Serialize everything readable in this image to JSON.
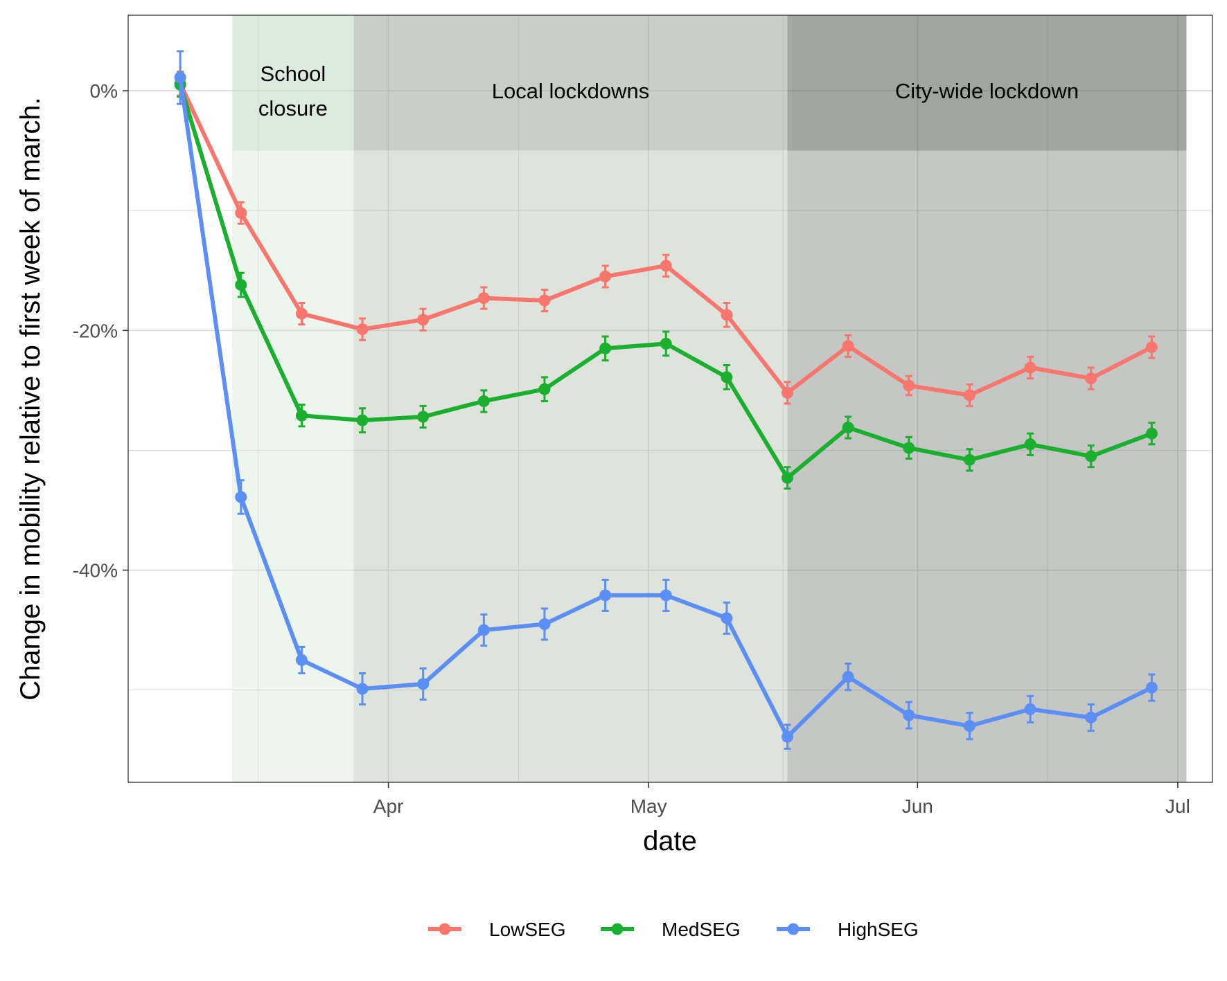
{
  "chart_data": {
    "type": "line",
    "xlabel": "date",
    "ylabel": "Change in mobility relative to first week of march.",
    "x_axis_type": "date",
    "xlim": [
      "2020-03-02",
      "2020-07-05"
    ],
    "ylim": [
      -57.7,
      6.3
    ],
    "x_ticks": [
      {
        "date": "2020-04-01",
        "label": "Apr"
      },
      {
        "date": "2020-05-01",
        "label": "May"
      },
      {
        "date": "2020-06-01",
        "label": "Jun"
      },
      {
        "date": "2020-07-01",
        "label": "Jul"
      }
    ],
    "y_ticks": [
      {
        "value": 0,
        "label": "0%"
      },
      {
        "value": -20,
        "label": "-20%"
      },
      {
        "value": -40,
        "label": "-40%"
      }
    ],
    "grid": true,
    "legend_position": "bottom",
    "periods": [
      {
        "label_lines": [
          "School",
          "closure"
        ],
        "start": "2020-03-14",
        "end": "2020-03-28",
        "fill": "#d4ead4",
        "header_fill": "#c4dfc4"
      },
      {
        "label_lines": [
          "Local lockdowns"
        ],
        "start": "2020-03-28",
        "end": "2020-05-17",
        "fill": "#b5c2b2",
        "header_fill": "#a3b0a0"
      },
      {
        "label_lines": [
          "City-wide lockdown"
        ],
        "start": "2020-05-17",
        "end": "2020-07-02",
        "fill": "#7d837a",
        "header_fill": "#636b61"
      }
    ],
    "x": [
      "2020-03-08",
      "2020-03-15",
      "2020-03-22",
      "2020-03-29",
      "2020-04-05",
      "2020-04-12",
      "2020-04-19",
      "2020-04-26",
      "2020-05-03",
      "2020-05-10",
      "2020-05-17",
      "2020-05-24",
      "2020-05-31",
      "2020-06-07",
      "2020-06-14",
      "2020-06-21",
      "2020-06-28"
    ],
    "series": [
      {
        "name": "LowSEG",
        "color": "#f8766d",
        "values": [
          0.6,
          -10.2,
          -18.6,
          -19.9,
          -19.1,
          -17.3,
          -17.5,
          -15.5,
          -14.6,
          -18.7,
          -25.2,
          -21.3,
          -24.6,
          -25.4,
          -23.1,
          -24.0,
          -21.4
        ],
        "error": [
          1.0,
          0.9,
          0.9,
          0.9,
          0.9,
          0.9,
          0.9,
          0.9,
          0.9,
          1.0,
          0.9,
          0.9,
          0.8,
          0.9,
          0.9,
          0.9,
          0.9
        ]
      },
      {
        "name": "MedSEG",
        "color": "#1aaf2e",
        "values": [
          0.5,
          -16.2,
          -27.1,
          -27.5,
          -27.2,
          -25.9,
          -24.9,
          -21.5,
          -21.1,
          -23.9,
          -32.3,
          -28.1,
          -29.8,
          -30.8,
          -29.5,
          -30.5,
          -28.6
        ],
        "error": [
          1.0,
          1.0,
          0.9,
          1.0,
          0.9,
          0.9,
          1.0,
          1.0,
          1.0,
          1.0,
          0.9,
          0.9,
          0.9,
          0.9,
          0.9,
          0.9,
          0.9
        ]
      },
      {
        "name": "HighSEG",
        "color": "#5b8ff5",
        "values": [
          1.1,
          -33.9,
          -47.5,
          -49.9,
          -49.5,
          -45.0,
          -44.5,
          -42.1,
          -42.1,
          -44.0,
          -53.9,
          -48.9,
          -52.1,
          -53.0,
          -51.6,
          -52.3,
          -49.8
        ],
        "error": [
          2.2,
          1.4,
          1.1,
          1.3,
          1.3,
          1.3,
          1.3,
          1.3,
          1.3,
          1.3,
          1.0,
          1.1,
          1.1,
          1.1,
          1.1,
          1.1,
          1.1
        ]
      }
    ]
  }
}
